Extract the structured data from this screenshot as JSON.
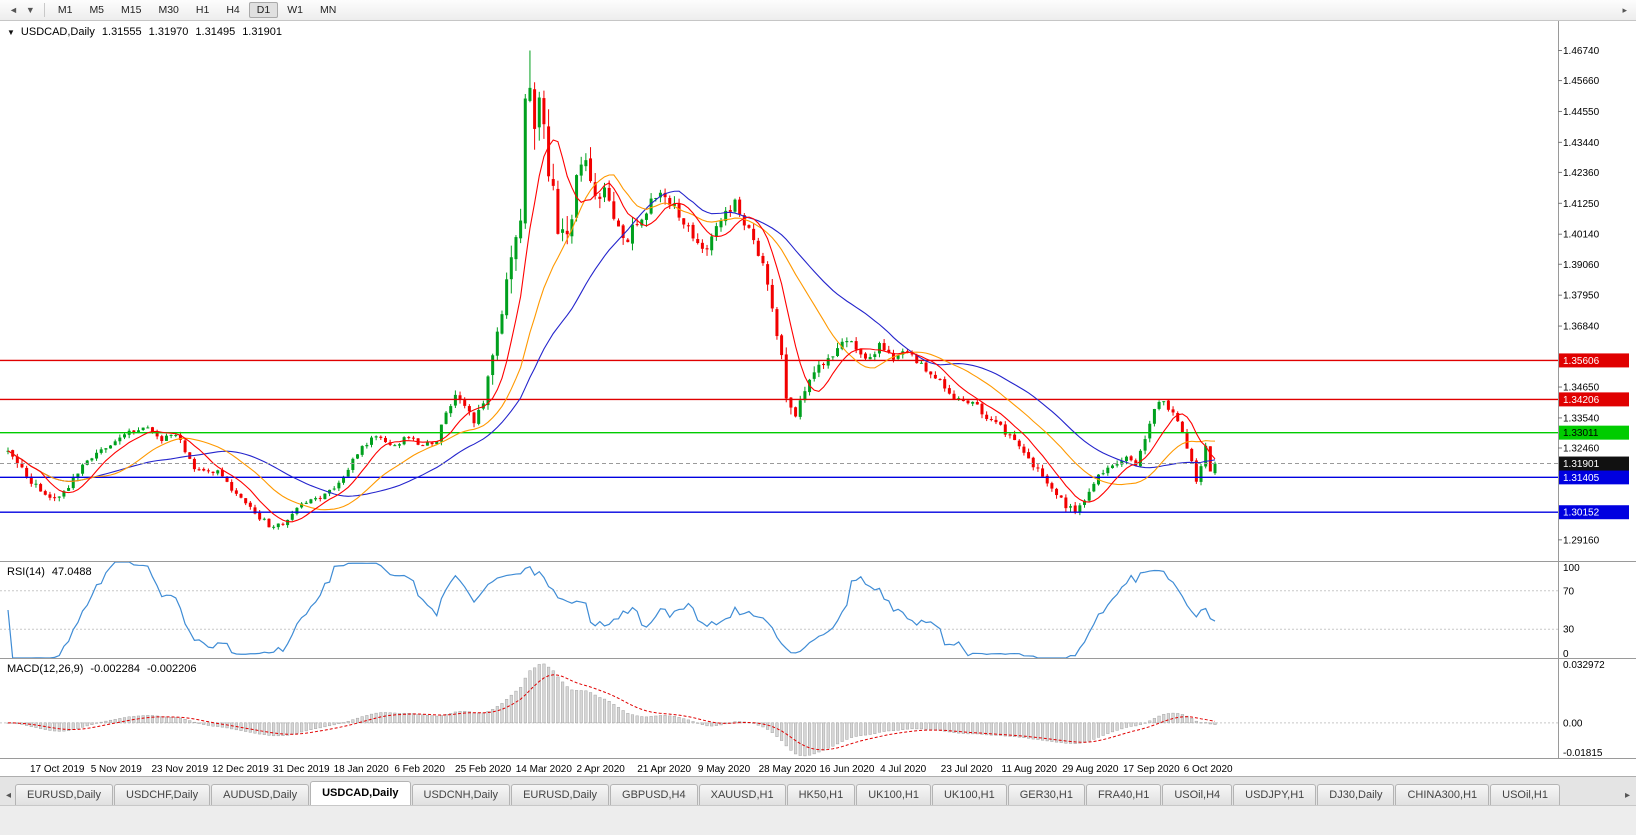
{
  "colors": {
    "up": "#00a01e",
    "down": "#f20000",
    "ma_fast": "#ff0000",
    "ma_mid": "#ff9900",
    "ma_slow": "#2424cc",
    "rsi_line": "#3f8cd5",
    "macd_hist_fill": "#d6d6d6",
    "macd_hist_stroke": "#a4a4a4",
    "macd_signal": "#e00000",
    "level_red": "#e00000",
    "level_green": "#00cc00",
    "level_blue": "#0000e0",
    "last_price_badge": "#111111",
    "grid_dotted": "#c8c8c8",
    "separator": "#9a9a9a"
  },
  "toolbar": {
    "back_icon": "◄",
    "dropdown_icon": "▼",
    "timeframes": [
      "M1",
      "M5",
      "M15",
      "M30",
      "H1",
      "H4",
      "D1",
      "W1",
      "MN"
    ],
    "active_timeframe": "D1",
    "right_icon": "▸"
  },
  "chart": {
    "collapse_icon": "▼",
    "symbol_title": "USDCAD,Daily",
    "open": "1.31555",
    "high": "1.31970",
    "low": "1.31495",
    "close": "1.31901"
  },
  "rsi_panel": {
    "label": "RSI(14)",
    "value": "47.0488",
    "axis_labels": [
      {
        "v": 100,
        "t": "100"
      },
      {
        "v": 70,
        "t": "70"
      },
      {
        "v": 30,
        "t": "30"
      },
      {
        "v": 0,
        "t": "0"
      }
    ],
    "dotted_levels": [
      70,
      30
    ]
  },
  "macd_panel": {
    "label": "MACD(12,26,9)",
    "value": "-0.002284",
    "signal_value": "-0.002206",
    "axis_top": "0.032972",
    "axis_zero": "0.00",
    "axis_bottom": "-0.01815"
  },
  "price_axis": {
    "ticks": [
      "1.46740",
      "1.45660",
      "1.44550",
      "1.43440",
      "1.42360",
      "1.41250",
      "1.40140",
      "1.39060",
      "1.37950",
      "1.36840",
      "1.34650",
      "1.33540",
      "1.32460",
      "1.29160"
    ]
  },
  "levels": [
    {
      "price": 1.35606,
      "label": "1.35606",
      "color": "red"
    },
    {
      "price": 1.34206,
      "label": "1.34206",
      "color": "red"
    },
    {
      "price": 1.33011,
      "label": "1.33011",
      "color": "green"
    },
    {
      "price": 1.31405,
      "label": "1.31405",
      "color": "blue"
    },
    {
      "price": 1.30152,
      "label": "1.30152",
      "color": "blue"
    }
  ],
  "date_axis": [
    "17 Oct 2019",
    "5 Nov 2019",
    "23 Nov 2019",
    "12 Dec 2019",
    "31 Dec 2019",
    "18 Jan 2020",
    "6 Feb 2020",
    "25 Feb 2020",
    "14 Mar 2020",
    "2 Apr 2020",
    "21 Apr 2020",
    "9 May 2020",
    "28 May 2020",
    "16 Jun 2020",
    "4 Jul 2020",
    "23 Jul 2020",
    "11 Aug 2020",
    "29 Aug 2020",
    "17 Sep 2020",
    "6 Oct 2020"
  ],
  "tabs": {
    "scroll_left_icon": "◂",
    "scroll_right_icon": "▸",
    "active_index": 3,
    "items": [
      "EURUSD,Daily",
      "USDCHF,Daily",
      "AUDUSD,Daily",
      "USDCAD,Daily",
      "USDCNH,Daily",
      "EURUSD,Daily",
      "GBPUSD,H4",
      "XAUUSD,H1",
      "HK50,H1",
      "UK100,H1",
      "UK100,H1",
      "GER30,H1",
      "FRA40,H1",
      "USOil,H4",
      "USDJPY,H1",
      "DJ30,Daily",
      "CHINA300,H1",
      "USOil,H1"
    ]
  },
  "chart_data": {
    "type": "candlestick",
    "symbol": "USDCAD",
    "timeframe": "Daily",
    "bar_count": 260,
    "seed": 11,
    "main_scale": {
      "max": 1.478,
      "min": 1.284
    },
    "last_bar": {
      "open": 1.31555,
      "high": 1.3197,
      "low": 1.31495,
      "close": 1.31901
    },
    "extreme_bar": {
      "index": 112,
      "high": 1.4674
    },
    "ma_periods": {
      "fast": 8,
      "mid": 20,
      "slow": 34
    },
    "rsi": {
      "period": 14,
      "current": 47.0488,
      "scale": [
        0,
        100
      ],
      "levels": [
        30,
        70
      ]
    },
    "macd": {
      "fast": 12,
      "slow": 26,
      "signal": 9,
      "current": -0.002284,
      "signal_current": -0.002206,
      "scale": [
        -0.01815,
        0.032972
      ]
    },
    "price_path_anchors": [
      [
        0,
        1.3235,
        0.0035
      ],
      [
        4,
        1.315,
        0.0035
      ],
      [
        8,
        1.3065,
        0.003
      ],
      [
        12,
        1.309,
        0.0028
      ],
      [
        16,
        1.318,
        0.0026
      ],
      [
        21,
        1.3245,
        0.0024
      ],
      [
        26,
        1.3305,
        0.0022
      ],
      [
        30,
        1.332,
        0.002
      ],
      [
        33,
        1.328,
        0.002
      ],
      [
        36,
        1.33,
        0.002
      ],
      [
        40,
        1.3175,
        0.0024
      ],
      [
        45,
        1.316,
        0.002
      ],
      [
        49,
        1.308,
        0.002
      ],
      [
        53,
        1.301,
        0.0022
      ],
      [
        57,
        1.2955,
        0.002
      ],
      [
        60,
        1.299,
        0.002
      ],
      [
        63,
        1.305,
        0.002
      ],
      [
        67,
        1.3065,
        0.0018
      ],
      [
        71,
        1.312,
        0.0018
      ],
      [
        75,
        1.323,
        0.002
      ],
      [
        79,
        1.329,
        0.002
      ],
      [
        83,
        1.3255,
        0.0018
      ],
      [
        86,
        1.329,
        0.0018
      ],
      [
        89,
        1.325,
        0.002
      ],
      [
        92,
        1.328,
        0.0024
      ],
      [
        94,
        1.338,
        0.003
      ],
      [
        96,
        1.344,
        0.0034
      ],
      [
        98,
        1.339,
        0.004
      ],
      [
        100,
        1.333,
        0.0042
      ],
      [
        102,
        1.341,
        0.005
      ],
      [
        104,
        1.3555,
        0.007
      ],
      [
        106,
        1.3765,
        0.009
      ],
      [
        108,
        1.392,
        0.01
      ],
      [
        110,
        1.41,
        0.012
      ],
      [
        111,
        1.448,
        0.015
      ],
      [
        112,
        1.461,
        0.016
      ],
      [
        113,
        1.439,
        0.014
      ],
      [
        114,
        1.448,
        0.013
      ],
      [
        116,
        1.425,
        0.012
      ],
      [
        118,
        1.405,
        0.011
      ],
      [
        120,
        1.3975,
        0.01
      ],
      [
        122,
        1.419,
        0.009
      ],
      [
        124,
        1.427,
        0.008
      ],
      [
        126,
        1.4145,
        0.0075
      ],
      [
        128,
        1.4195,
        0.007
      ],
      [
        130,
        1.4085,
        0.0065
      ],
      [
        132,
        1.399,
        0.006
      ],
      [
        135,
        1.4045,
        0.0055
      ],
      [
        138,
        1.4125,
        0.005
      ],
      [
        141,
        1.416,
        0.005
      ],
      [
        144,
        1.409,
        0.0048
      ],
      [
        147,
        1.4015,
        0.0046
      ],
      [
        150,
        1.396,
        0.0045
      ],
      [
        153,
        1.407,
        0.0044
      ],
      [
        156,
        1.4135,
        0.0042
      ],
      [
        158,
        1.406,
        0.004
      ],
      [
        160,
        1.399,
        0.004
      ],
      [
        162,
        1.3895,
        0.004
      ],
      [
        164,
        1.376,
        0.0042
      ],
      [
        166,
        1.356,
        0.0046
      ],
      [
        167,
        1.342,
        0.0048
      ],
      [
        169,
        1.3375,
        0.0045
      ],
      [
        172,
        1.348,
        0.004
      ],
      [
        175,
        1.3555,
        0.0038
      ],
      [
        178,
        1.36,
        0.0036
      ],
      [
        181,
        1.3635,
        0.0034
      ],
      [
        184,
        1.356,
        0.0032
      ],
      [
        187,
        1.361,
        0.003
      ],
      [
        190,
        1.3575,
        0.003
      ],
      [
        193,
        1.36,
        0.0028
      ],
      [
        196,
        1.3545,
        0.0028
      ],
      [
        199,
        1.3505,
        0.0026
      ],
      [
        202,
        1.343,
        0.0026
      ],
      [
        205,
        1.3415,
        0.0026
      ],
      [
        208,
        1.3395,
        0.0026
      ],
      [
        211,
        1.3345,
        0.0026
      ],
      [
        214,
        1.3305,
        0.0026
      ],
      [
        217,
        1.326,
        0.0026
      ],
      [
        220,
        1.3185,
        0.0028
      ],
      [
        223,
        1.311,
        0.0028
      ],
      [
        226,
        1.3055,
        0.003
      ],
      [
        229,
        1.301,
        0.0032
      ],
      [
        231,
        1.3065,
        0.0028
      ],
      [
        234,
        1.314,
        0.0026
      ],
      [
        237,
        1.318,
        0.0024
      ],
      [
        240,
        1.3215,
        0.0024
      ],
      [
        242,
        1.319,
        0.0022
      ],
      [
        244,
        1.328,
        0.0026
      ],
      [
        246,
        1.339,
        0.0028
      ],
      [
        248,
        1.3415,
        0.0028
      ],
      [
        250,
        1.3375,
        0.0026
      ],
      [
        252,
        1.331,
        0.0026
      ],
      [
        254,
        1.3195,
        0.0028
      ],
      [
        255,
        1.313,
        0.0026
      ],
      [
        256,
        1.318,
        0.0024
      ],
      [
        257,
        1.3245,
        0.0022
      ],
      [
        258,
        1.322,
        0.002
      ],
      [
        259,
        1.319,
        0.002
      ]
    ]
  }
}
